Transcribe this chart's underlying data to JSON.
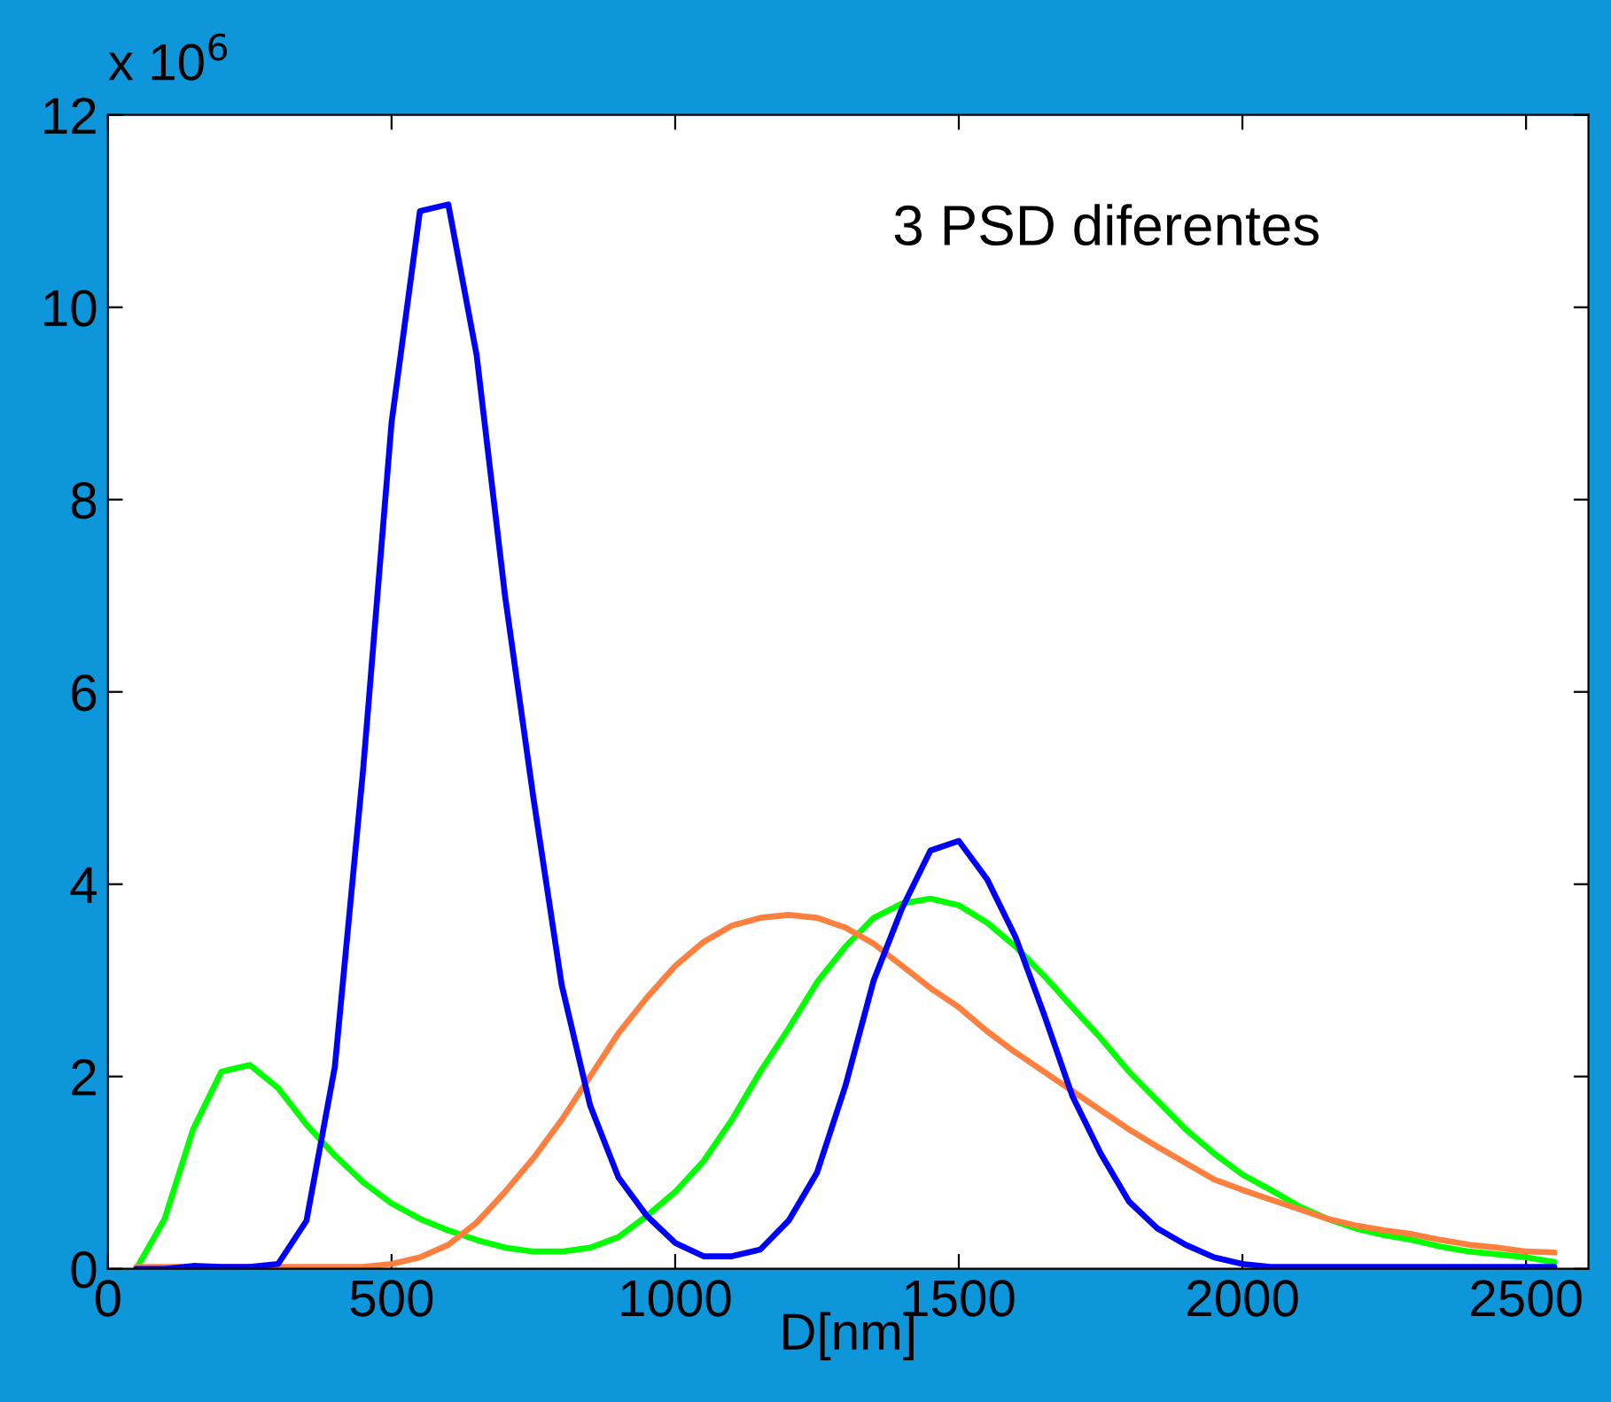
{
  "chart_data": {
    "type": "line",
    "xlabel": "D[nm]",
    "x": [
      50,
      100,
      150,
      200,
      250,
      300,
      350,
      400,
      450,
      500,
      550,
      600,
      650,
      700,
      750,
      800,
      850,
      900,
      950,
      1000,
      1050,
      1100,
      1150,
      1200,
      1250,
      1300,
      1350,
      1400,
      1450,
      1500,
      1550,
      1600,
      1650,
      1700,
      1750,
      1800,
      1850,
      1900,
      1950,
      2000,
      2050,
      2100,
      2150,
      2200,
      2250,
      2300,
      2350,
      2400,
      2450,
      2500,
      2550
    ],
    "series": [
      {
        "color": "#0000ff",
        "values": [
          0,
          0,
          0.03,
          0.02,
          0.02,
          0.05,
          0.5,
          2.1,
          5.2,
          8.8,
          11.0,
          11.07,
          9.5,
          7.0,
          4.9,
          2.95,
          1.7,
          0.95,
          0.55,
          0.27,
          0.13,
          0.13,
          0.2,
          0.5,
          1.0,
          1.9,
          3.0,
          3.75,
          4.35,
          4.45,
          4.05,
          3.45,
          2.65,
          1.8,
          1.2,
          0.7,
          0.42,
          0.25,
          0.12,
          0.05,
          0.02,
          0.02,
          0.02,
          0.02,
          0.02,
          0.02,
          0.02,
          0.02,
          0.02,
          0.02,
          0.02
        ]
      },
      {
        "color": "#ff7f3f",
        "values": [
          0.02,
          0.02,
          0.02,
          0.02,
          0.02,
          0.02,
          0.02,
          0.02,
          0.02,
          0.05,
          0.12,
          0.25,
          0.48,
          0.8,
          1.15,
          1.55,
          2.0,
          2.45,
          2.82,
          3.15,
          3.4,
          3.57,
          3.65,
          3.68,
          3.65,
          3.55,
          3.38,
          3.15,
          2.92,
          2.72,
          2.47,
          2.25,
          2.05,
          1.85,
          1.65,
          1.45,
          1.27,
          1.1,
          0.93,
          0.82,
          0.72,
          0.62,
          0.52,
          0.45,
          0.4,
          0.36,
          0.3,
          0.25,
          0.22,
          0.18,
          0.17
        ]
      },
      {
        "color": "#00ff00",
        "values": [
          0,
          0.52,
          1.45,
          2.05,
          2.12,
          1.88,
          1.5,
          1.18,
          0.9,
          0.68,
          0.52,
          0.4,
          0.3,
          0.22,
          0.18,
          0.18,
          0.22,
          0.33,
          0.55,
          0.8,
          1.12,
          1.55,
          2.05,
          2.5,
          2.98,
          3.35,
          3.65,
          3.8,
          3.85,
          3.78,
          3.6,
          3.35,
          3.05,
          2.72,
          2.4,
          2.05,
          1.75,
          1.45,
          1.2,
          0.98,
          0.82,
          0.65,
          0.52,
          0.42,
          0.35,
          0.3,
          0.23,
          0.18,
          0.15,
          0.12,
          0.07
        ]
      }
    ],
    "xlim": [
      0,
      2610
    ],
    "xticks": [
      0,
      500,
      1000,
      1500,
      2000,
      2500
    ],
    "ylim": [
      0,
      12
    ],
    "yticks": [
      0,
      2,
      4,
      6,
      8,
      10,
      12
    ],
    "annotations": [
      "3 PSD diferentes",
      "x 10$^{6}$"
    ],
    "grid": false,
    "marker": "none",
    "line_style": "solid"
  }
}
